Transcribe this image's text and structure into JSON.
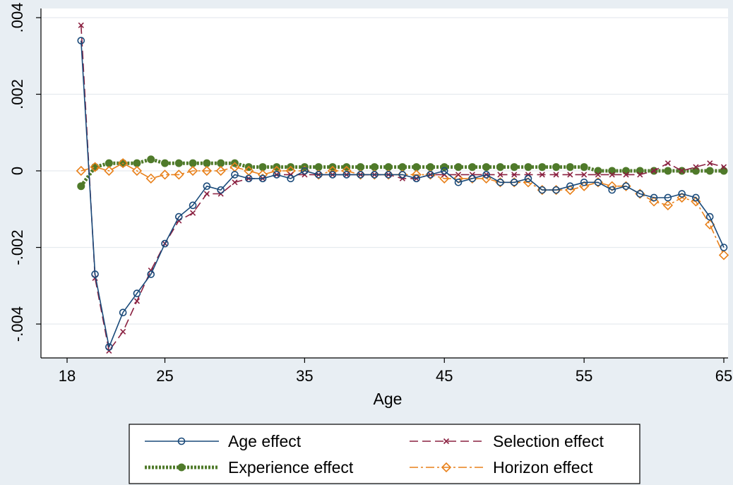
{
  "chart_data": {
    "type": "line",
    "title": "",
    "xlabel": "Age",
    "ylabel": "",
    "xlim": [
      18,
      65
    ],
    "ylim": [
      -0.005,
      0.004
    ],
    "x_ticks": [
      18,
      25,
      35,
      45,
      55,
      65
    ],
    "x_tick_labels": [
      "18",
      "25",
      "35",
      "45",
      "55",
      "65"
    ],
    "y_ticks": [
      -0.004,
      -0.002,
      0,
      0.002,
      0.004
    ],
    "y_tick_labels": [
      "-.004",
      "-.002",
      "0",
      ".002",
      ".004"
    ],
    "grid": true,
    "legend_position": "bottom",
    "x": [
      19,
      20,
      21,
      22,
      23,
      24,
      25,
      26,
      27,
      28,
      29,
      30,
      31,
      32,
      33,
      34,
      35,
      36,
      37,
      38,
      39,
      40,
      41,
      42,
      43,
      44,
      45,
      46,
      47,
      48,
      49,
      50,
      51,
      52,
      53,
      54,
      55,
      56,
      57,
      58,
      59,
      60,
      61,
      62,
      63,
      64,
      65
    ],
    "series": [
      {
        "name": "Age effect",
        "color": "#1a4a7a",
        "style": "solid",
        "marker": "circle",
        "values": [
          0.0034,
          -0.0027,
          -0.0046,
          -0.0037,
          -0.0032,
          -0.0027,
          -0.0019,
          -0.0012,
          -0.0009,
          -0.0004,
          -0.0005,
          -0.0001,
          -0.0002,
          -0.0002,
          -0.0001,
          -0.0002,
          0.0,
          -0.0001,
          -0.0001,
          -0.0001,
          -0.0001,
          -0.0001,
          -0.0001,
          -0.0001,
          -0.0002,
          -0.0001,
          0.0,
          -0.0003,
          -0.0002,
          -0.0001,
          -0.0003,
          -0.0003,
          -0.0002,
          -0.0005,
          -0.0005,
          -0.0004,
          -0.0003,
          -0.0003,
          -0.0005,
          -0.0004,
          -0.0006,
          -0.0007,
          -0.0007,
          -0.0006,
          -0.0007,
          -0.0012,
          -0.002
        ]
      },
      {
        "name": "Selection effect",
        "color": "#8a2040",
        "style": "dashed",
        "marker": "x",
        "values": [
          0.0038,
          -0.0028,
          -0.0047,
          -0.0042,
          -0.0034,
          -0.0026,
          -0.0019,
          -0.0013,
          -0.0011,
          -0.0006,
          -0.0006,
          -0.0003,
          -0.0002,
          -0.0002,
          -0.0001,
          -0.0001,
          -0.0001,
          -0.0001,
          -0.0001,
          -0.0001,
          -0.0001,
          -0.0001,
          -0.0001,
          -0.0002,
          -0.0002,
          -0.0001,
          -0.0001,
          -0.0001,
          -0.0001,
          -0.0001,
          -0.0001,
          -0.0001,
          -0.0001,
          -0.0001,
          -0.0001,
          -0.0001,
          -0.0001,
          -0.0001,
          -0.0001,
          -0.0001,
          -0.0001,
          0.0,
          0.0002,
          0.0,
          0.0001,
          0.0002,
          0.0001
        ]
      },
      {
        "name": "Experience effect",
        "color": "#4f7a2a",
        "style": "dotted",
        "marker": "circle-filled",
        "values": [
          -0.0004,
          0.0001,
          0.0002,
          0.0002,
          0.0002,
          0.0003,
          0.0002,
          0.0002,
          0.0002,
          0.0002,
          0.0002,
          0.0002,
          0.0001,
          0.0001,
          0.0001,
          0.0001,
          0.0001,
          0.0001,
          0.0001,
          0.0001,
          0.0001,
          0.0001,
          0.0001,
          0.0001,
          0.0001,
          0.0001,
          0.0001,
          0.0001,
          0.0001,
          0.0001,
          0.0001,
          0.0001,
          0.0001,
          0.0001,
          0.0001,
          0.0001,
          0.0001,
          0.0,
          0.0,
          0.0,
          0.0,
          0.0,
          0.0,
          0.0,
          0.0,
          0.0,
          0.0
        ]
      },
      {
        "name": "Horizon effect",
        "color": "#e8801a",
        "style": "dashdot",
        "marker": "diamond",
        "values": [
          0.0,
          0.0001,
          0.0,
          0.0002,
          0.0,
          -0.0002,
          -0.0001,
          -0.0001,
          0.0,
          0.0,
          0.0,
          0.0001,
          0.0,
          -0.0001,
          0.0,
          0.0,
          0.0,
          -0.0001,
          0.0,
          0.0,
          -0.0001,
          -0.0001,
          -0.0001,
          -0.0001,
          -0.0001,
          -0.0001,
          -0.0002,
          -0.0002,
          -0.0002,
          -0.0002,
          -0.0003,
          -0.0003,
          -0.0003,
          -0.0005,
          -0.0005,
          -0.0005,
          -0.0004,
          -0.0003,
          -0.0004,
          -0.0004,
          -0.0006,
          -0.0008,
          -0.0009,
          -0.0007,
          -0.0008,
          -0.0014,
          -0.0022
        ]
      }
    ]
  }
}
